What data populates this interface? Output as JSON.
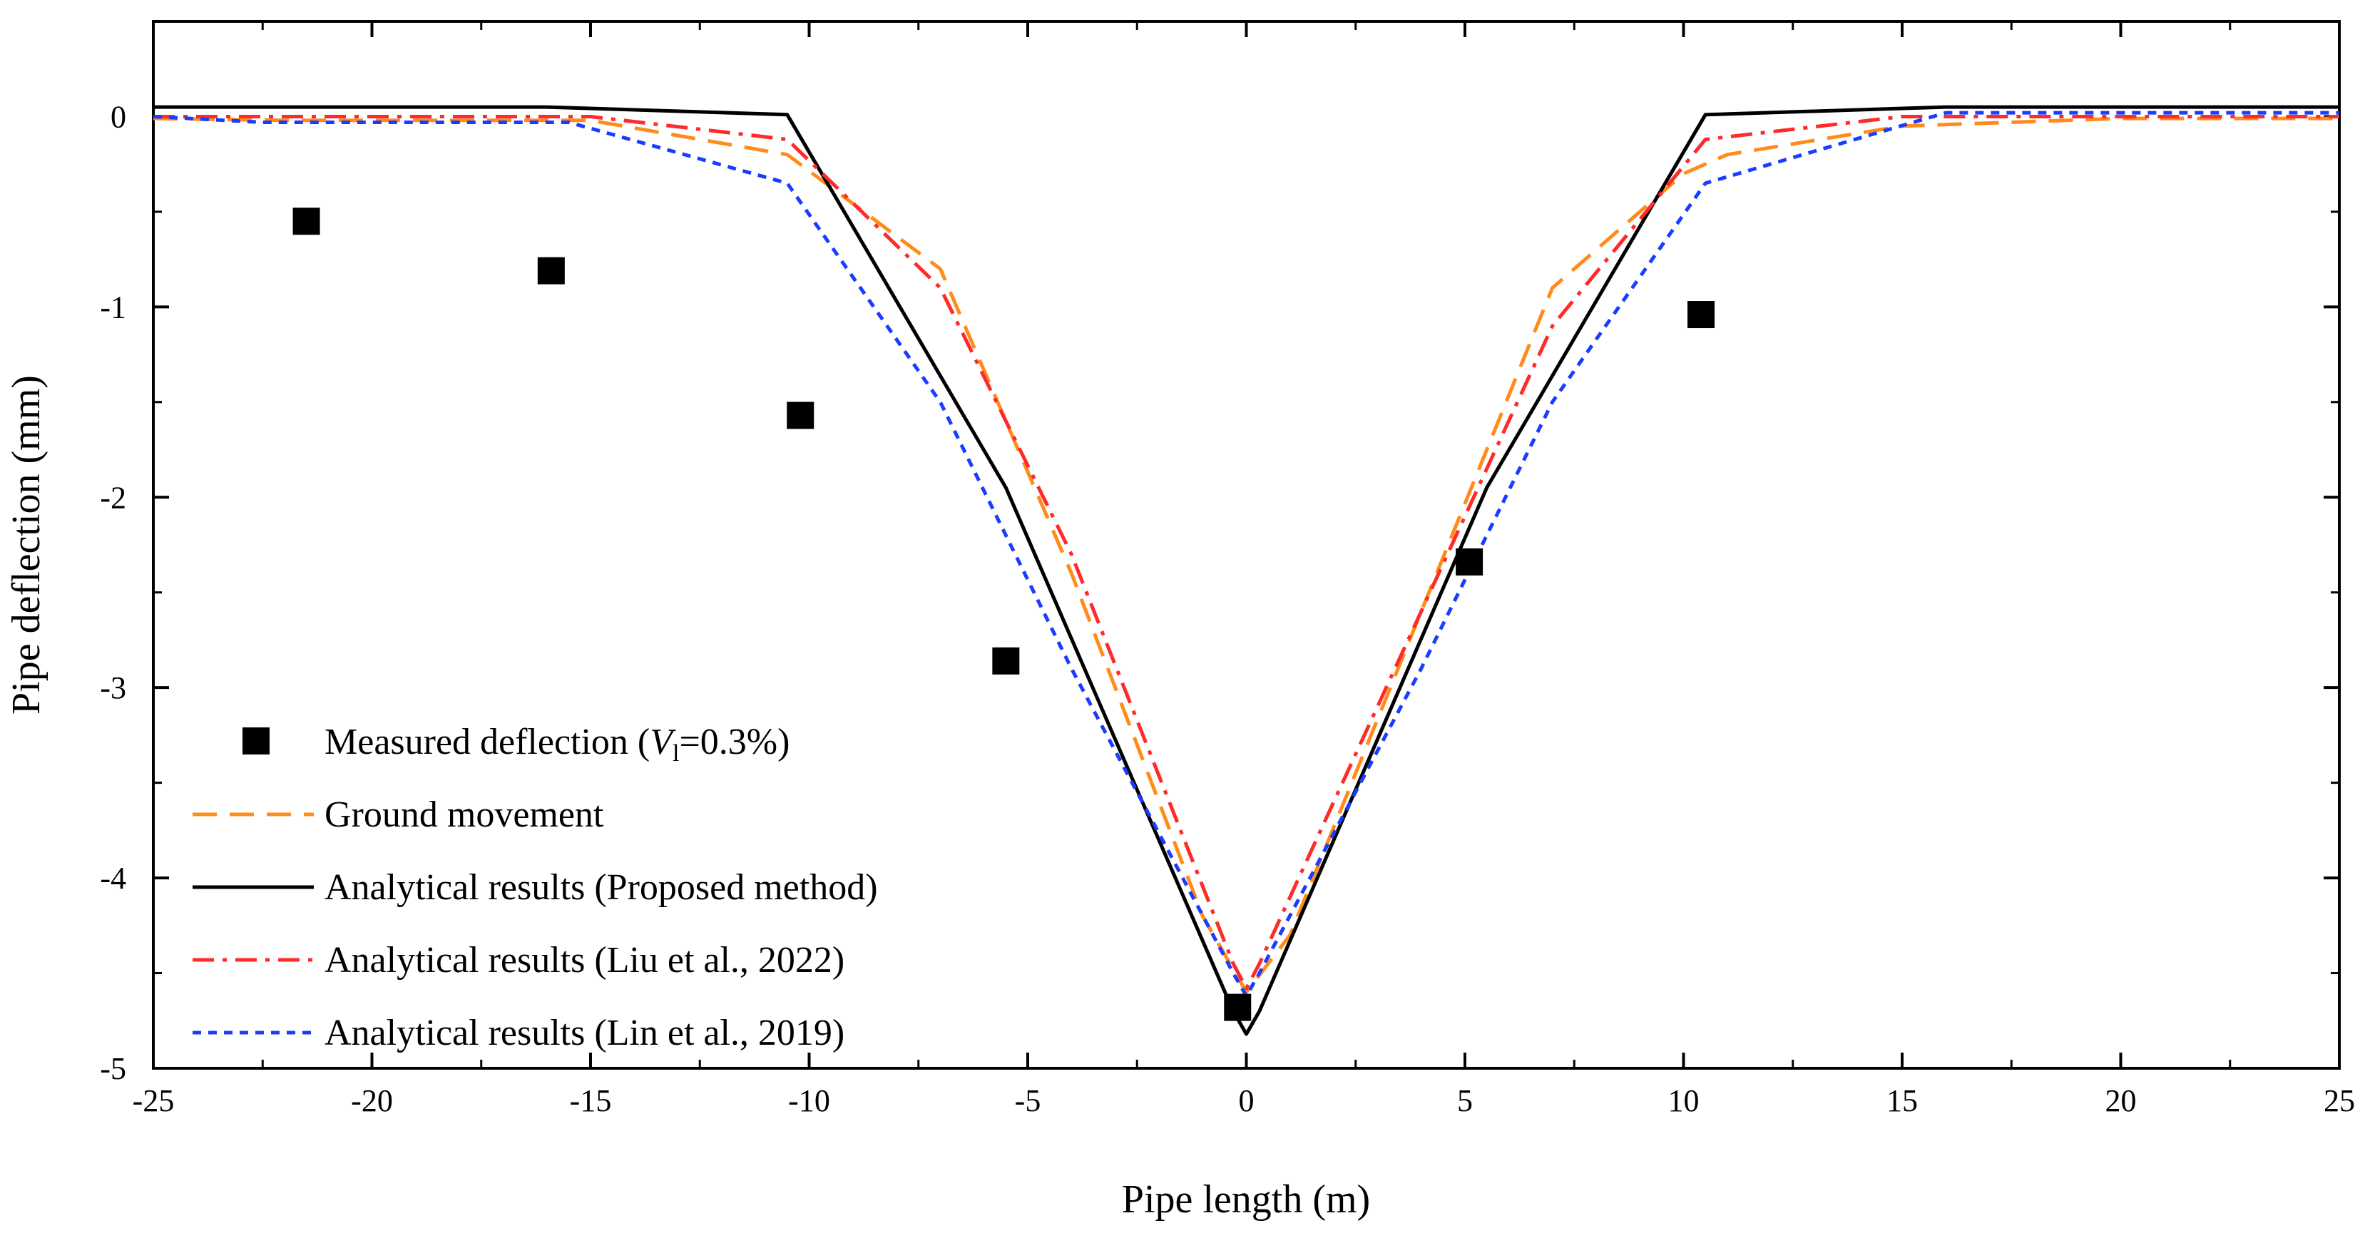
{
  "chart_data": {
    "type": "line",
    "title": "",
    "xlabel": "Pipe length (m)",
    "ylabel": "Pipe deflection (mm)",
    "xlim": [
      -25,
      25
    ],
    "ylim": [
      -5,
      0.5
    ],
    "xticks": [
      -25,
      -20,
      -15,
      -10,
      -5,
      0,
      5,
      10,
      15,
      20,
      25
    ],
    "yticks": [
      0,
      -1,
      -2,
      -3,
      -4,
      -5
    ],
    "legend_position": "bottom-left",
    "series": [
      {
        "name": "Measured deflection (Vl=0.3%)",
        "legend_prefix": "Measured deflection (",
        "legend_italic": "V",
        "legend_sub": "l",
        "legend_suffix": "=0.3%)",
        "style": "markers",
        "marker": "square",
        "color": "#000000",
        "x": [
          -21.5,
          -15.9,
          -10.2,
          -5.5,
          -0.2,
          5.1,
          10.4
        ],
        "y": [
          -0.55,
          -0.81,
          -1.57,
          -2.86,
          -4.68,
          -2.34,
          -1.04
        ]
      },
      {
        "name": "Ground movement",
        "style": "dashed",
        "color": "#ff8c1a",
        "x": [
          -25,
          -22,
          -15,
          -10.5,
          -7,
          -4,
          -1,
          0,
          1,
          4,
          7,
          10,
          11,
          15,
          20,
          25
        ],
        "y": [
          -0.01,
          -0.02,
          -0.02,
          -0.2,
          -0.8,
          -2.4,
          -4.2,
          -4.6,
          -4.3,
          -2.6,
          -0.9,
          -0.3,
          -0.2,
          -0.05,
          -0.01,
          -0.01
        ]
      },
      {
        "name": "Analytical results (Proposed method)",
        "style": "solid",
        "color": "#000000",
        "x": [
          -25,
          -16,
          -10.5,
          -5.5,
          -0.3,
          0,
          0.3,
          5.5,
          10.5,
          16,
          25
        ],
        "y": [
          0.05,
          0.05,
          0.01,
          -1.95,
          -4.7,
          -4.82,
          -4.7,
          -1.95,
          0.01,
          0.05,
          0.05
        ]
      },
      {
        "name": "Analytical results (Liu et al., 2022)",
        "style": "dashdot",
        "color": "#ff2a2a",
        "x": [
          -25,
          -15,
          -10.5,
          -7,
          -4,
          -0.3,
          0,
          0.3,
          4,
          7,
          10.5,
          15,
          25
        ],
        "y": [
          0,
          0,
          -0.12,
          -0.9,
          -2.3,
          -4.45,
          -4.58,
          -4.45,
          -2.6,
          -1.1,
          -0.12,
          0,
          0
        ]
      },
      {
        "name": "Analytical results (Lin et al., 2019)",
        "style": "dotted",
        "color": "#1a3cff",
        "x": [
          -25,
          -22.5,
          -15.5,
          -10.5,
          -7,
          -4,
          -0.3,
          0,
          0.3,
          4,
          7,
          10.5,
          16,
          25
        ],
        "y": [
          0,
          -0.03,
          -0.03,
          -0.35,
          -1.5,
          -2.9,
          -4.5,
          -4.62,
          -4.5,
          -2.9,
          -1.5,
          -0.35,
          0.02,
          0.02
        ]
      }
    ]
  }
}
